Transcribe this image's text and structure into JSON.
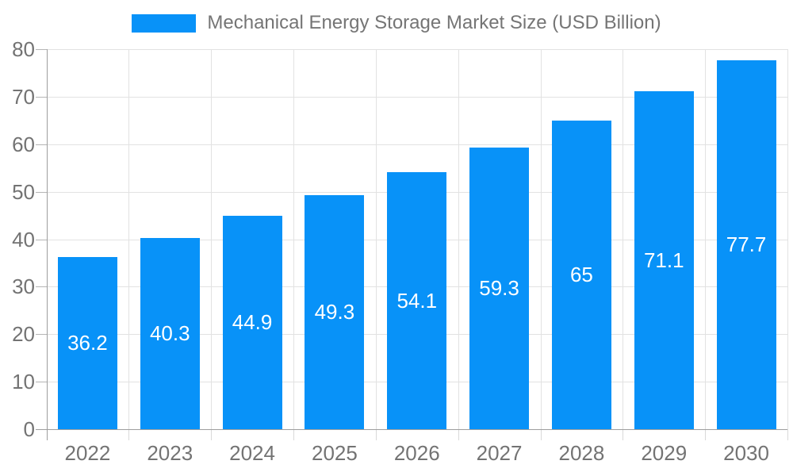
{
  "legend": {
    "label": "Mechanical Energy Storage Market Size (USD Billion)"
  },
  "colors": {
    "bar": "#0892f8",
    "grid": "#e2e2e2",
    "axis": "#9e9e9e",
    "tick": "#b5b5b5",
    "tick_text": "#737373",
    "value_label": "#ffffff"
  },
  "chart_data": {
    "type": "bar",
    "title": "Mechanical Energy Storage Market Size (USD Billion)",
    "categories": [
      "2022",
      "2023",
      "2024",
      "2025",
      "2026",
      "2027",
      "2028",
      "2029",
      "2030"
    ],
    "values": [
      36.2,
      40.3,
      44.9,
      49.3,
      54.1,
      59.3,
      65,
      71.1,
      77.7
    ],
    "value_labels": [
      "36.2",
      "40.3",
      "44.9",
      "49.3",
      "54.1",
      "59.3",
      "65",
      "71.1",
      "77.7"
    ],
    "xlabel": "",
    "ylabel": "",
    "ylim": [
      0,
      80
    ],
    "ytick_step": 10,
    "yticks": [
      0,
      10,
      20,
      30,
      40,
      50,
      60,
      70,
      80
    ],
    "grid": true,
    "legend_position": "top"
  }
}
